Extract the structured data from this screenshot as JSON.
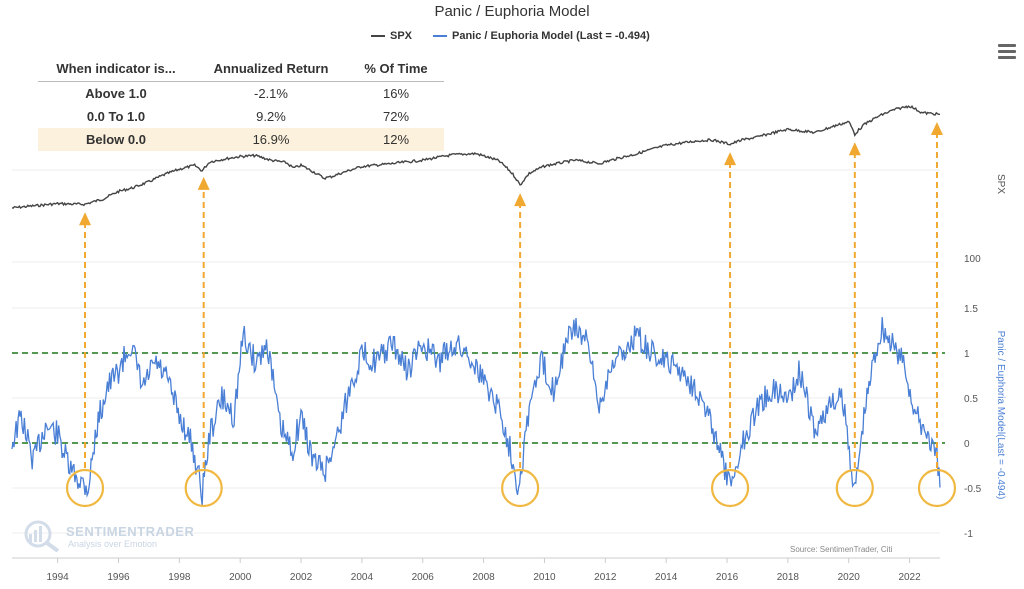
{
  "chart_data": {
    "type": "line",
    "title": "Panic / Euphoria Model",
    "legend": {
      "placement": "top-center",
      "entries": [
        {
          "name": "SPX",
          "color": "#444444"
        },
        {
          "name": "Panic / Euphoria Model (Last = -0.494)",
          "color": "#4a7fd6"
        }
      ]
    },
    "x_axis": {
      "range": [
        1992.5,
        2023.0
      ],
      "ticks": [
        "1994",
        "1996",
        "1998",
        "2000",
        "2002",
        "2004",
        "2006",
        "2008",
        "2010",
        "2012",
        "2014",
        "2016",
        "2018",
        "2020",
        "2022"
      ]
    },
    "y_axes": [
      {
        "label": "SPX",
        "scale": "log",
        "position": "right",
        "ticks": [
          "100"
        ]
      },
      {
        "label": "Panic / Euphoria Model(Last = -0.494)",
        "position": "right",
        "range": [
          -1,
          1.5
        ],
        "ticks": [
          "1.5",
          "1",
          "0.5",
          "0",
          "-0.5",
          "-1"
        ]
      }
    ],
    "reference_lines": [
      {
        "axis": "model",
        "value": 1.0,
        "style": "dashed",
        "color": "#3c8a3c"
      },
      {
        "axis": "model",
        "value": 0.0,
        "style": "dashed",
        "color": "#3c8a3c"
      }
    ],
    "series": [
      {
        "name": "SPX",
        "color": "#444444",
        "x": [
          1992.5,
          1993.5,
          1994.0,
          1994.5,
          1994.9,
          1995.5,
          1996.0,
          1996.5,
          1997.0,
          1997.5,
          1998.0,
          1998.5,
          1998.75,
          1999.0,
          1999.5,
          2000.0,
          2000.5,
          2001.0,
          2001.5,
          2001.75,
          2002.0,
          2002.5,
          2002.75,
          2003.0,
          2003.5,
          2004.0,
          2005.0,
          2006.0,
          2007.0,
          2007.75,
          2008.5,
          2009.0,
          2009.2,
          2009.5,
          2010.0,
          2011.0,
          2011.8,
          2012.5,
          2013.0,
          2014.0,
          2015.0,
          2015.5,
          2016.1,
          2016.5,
          2017.0,
          2018.0,
          2018.9,
          2019.5,
          2020.0,
          2020.2,
          2020.5,
          2021.0,
          2021.5,
          2022.0,
          2022.4,
          2022.8,
          2023.0
        ],
        "values": [
          420,
          450,
          465,
          460,
          458,
          520,
          620,
          680,
          780,
          920,
          1050,
          1150,
          1010,
          1250,
          1340,
          1420,
          1450,
          1300,
          1230,
          1080,
          1150,
          950,
          850,
          880,
          1000,
          1120,
          1200,
          1300,
          1480,
          1520,
          1280,
          900,
          720,
          950,
          1130,
          1300,
          1200,
          1380,
          1500,
          1850,
          2050,
          2100,
          1900,
          2100,
          2250,
          2700,
          2500,
          2900,
          3230,
          2400,
          3000,
          3700,
          4300,
          4700,
          4000,
          3900,
          3850
        ]
      },
      {
        "name": "Panic / Euphoria Model (Last = -0.494)",
        "color": "#4a7fd6",
        "x": [
          1992.5,
          1992.8,
          1993.2,
          1993.6,
          1994.0,
          1994.4,
          1994.7,
          1995.0,
          1995.3,
          1995.6,
          1996.0,
          1996.4,
          1996.8,
          1997.2,
          1997.6,
          1998.0,
          1998.4,
          1998.75,
          1999.0,
          1999.4,
          1999.8,
          2000.1,
          2000.5,
          2000.9,
          2001.3,
          2001.7,
          2002.0,
          2002.4,
          2002.8,
          2003.2,
          2003.6,
          2004.0,
          2004.5,
          2005.0,
          2005.5,
          2006.0,
          2006.5,
          2007.0,
          2007.5,
          2008.0,
          2008.5,
          2008.9,
          2009.15,
          2009.5,
          2009.9,
          2010.3,
          2010.7,
          2011.0,
          2011.4,
          2011.8,
          2012.2,
          2012.6,
          2013.0,
          2013.5,
          2014.0,
          2014.5,
          2015.0,
          2015.5,
          2016.1,
          2016.5,
          2017.0,
          2017.5,
          2018.0,
          2018.4,
          2018.9,
          2019.3,
          2019.8,
          2020.2,
          2020.5,
          2020.8,
          2021.1,
          2021.4,
          2021.8,
          2022.2,
          2022.6,
          2022.9,
          2023.0
        ],
        "values": [
          0.0,
          0.3,
          -0.2,
          0.2,
          0.1,
          -0.3,
          -0.4,
          -0.5,
          0.2,
          0.6,
          0.8,
          1.1,
          0.6,
          0.9,
          0.7,
          0.3,
          0.0,
          -0.55,
          0.1,
          0.5,
          0.3,
          1.2,
          0.9,
          1.1,
          0.2,
          -0.1,
          0.3,
          -0.2,
          -0.3,
          0.1,
          0.6,
          1.0,
          0.9,
          1.1,
          0.8,
          1.1,
          0.9,
          1.1,
          1.0,
          0.7,
          0.4,
          -0.1,
          -0.5,
          0.4,
          0.9,
          0.6,
          1.1,
          1.3,
          1.1,
          0.4,
          0.9,
          1.0,
          1.2,
          1.0,
          0.9,
          0.8,
          0.6,
          0.2,
          -0.5,
          0.0,
          0.4,
          0.6,
          0.5,
          0.8,
          0.1,
          0.4,
          0.5,
          -0.55,
          0.3,
          0.9,
          1.3,
          1.1,
          0.9,
          0.3,
          0.1,
          -0.2,
          -0.494
        ]
      }
    ],
    "annotations": [
      {
        "type": "arrow-circle",
        "x": 1994.9
      },
      {
        "type": "arrow-circle",
        "x": 1998.8
      },
      {
        "type": "arrow-circle",
        "x": 2009.2
      },
      {
        "type": "arrow-circle",
        "x": 2016.1
      },
      {
        "type": "arrow-circle",
        "x": 2020.2
      },
      {
        "type": "arrow-circle",
        "x": 2022.9
      }
    ],
    "table": {
      "headers": [
        "When indicator is...",
        "Annualized Return",
        "% Of Time"
      ],
      "rows": [
        {
          "label": "Above 1.0",
          "return": "-2.1%",
          "time": "16%"
        },
        {
          "label": "0.0 To 1.0",
          "return": "9.2%",
          "time": "72%"
        },
        {
          "label": "Below 0.0",
          "return": "16.9%",
          "time": "12%",
          "highlight": true
        }
      ]
    },
    "source": "Source: SentimenTrader, Citi",
    "watermark": {
      "name": "SENTIMENTRADER",
      "tagline": "Analysis over Emotion"
    }
  }
}
